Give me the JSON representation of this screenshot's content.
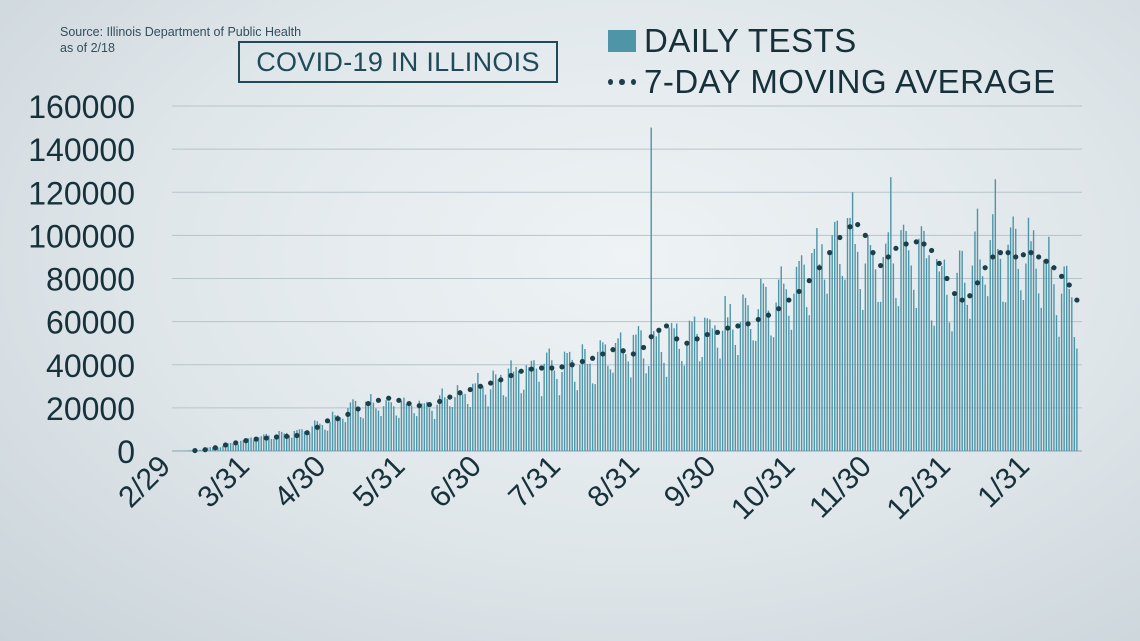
{
  "source_lines": [
    "Source: Illinois Department of Public Health",
    "as of 2/18"
  ],
  "title": "COVID-19 IN ILLINOIS",
  "legend": {
    "bars": "DAILY TESTS",
    "dots": "7-DAY MOVING AVERAGE"
  },
  "colors": {
    "bar": "#4e95a8",
    "dot": "#1c3f4a",
    "axis_text": "#17313b",
    "grid": "#b7c4ca"
  },
  "chart_data": {
    "type": "bar",
    "title": "COVID-19 IN ILLINOIS",
    "xlabel": "",
    "ylabel": "",
    "ylim": [
      0,
      160000
    ],
    "grid": true,
    "legend_position": "top-right",
    "y_ticks": [
      0,
      20000,
      40000,
      60000,
      80000,
      100000,
      120000,
      140000,
      160000
    ],
    "x_ticks": [
      "2/29",
      "3/31",
      "4/30",
      "5/31",
      "6/30",
      "7/31",
      "8/31",
      "9/30",
      "10/31",
      "11/30",
      "12/31",
      "1/31"
    ],
    "series": [
      {
        "name": "DAILY TESTS",
        "kind": "bar",
        "anchors": [
          [
            "2020-03-01",
            0
          ],
          [
            "2020-03-10",
            500
          ],
          [
            "2020-03-20",
            2500
          ],
          [
            "2020-03-31",
            6000
          ],
          [
            "2020-04-10",
            7500
          ],
          [
            "2020-04-20",
            10000
          ],
          [
            "2020-04-30",
            14000
          ],
          [
            "2020-05-10",
            22000
          ],
          [
            "2020-05-20",
            23000
          ],
          [
            "2020-05-31",
            21000
          ],
          [
            "2020-06-10",
            22000
          ],
          [
            "2020-06-20",
            27000
          ],
          [
            "2020-06-30",
            30000
          ],
          [
            "2020-07-10",
            36000
          ],
          [
            "2020-07-20",
            38000
          ],
          [
            "2020-07-31",
            40000
          ],
          [
            "2020-08-10",
            42000
          ],
          [
            "2020-08-20",
            47000
          ],
          [
            "2020-08-31",
            50000
          ],
          [
            "2020-09-10",
            52000
          ],
          [
            "2020-09-20",
            55000
          ],
          [
            "2020-09-30",
            58000
          ],
          [
            "2020-10-10",
            63000
          ],
          [
            "2020-10-20",
            70000
          ],
          [
            "2020-10-31",
            80000
          ],
          [
            "2020-11-10",
            92000
          ],
          [
            "2020-11-18",
            102000
          ],
          [
            "2020-11-30",
            88000
          ],
          [
            "2020-12-10",
            96000
          ],
          [
            "2020-12-20",
            90000
          ],
          [
            "2020-12-31",
            74000
          ],
          [
            "2021-01-10",
            92000
          ],
          [
            "2021-01-20",
            92000
          ],
          [
            "2021-01-31",
            90000
          ],
          [
            "2021-02-10",
            80000
          ],
          [
            "2021-02-18",
            68000
          ]
        ],
        "spikes": [
          [
            "2020-09-04",
            150000
          ],
          [
            "2020-11-22",
            120000
          ],
          [
            "2020-12-07",
            127000
          ],
          [
            "2021-01-17",
            126000
          ]
        ]
      },
      {
        "name": "7-DAY MOVING AVERAGE",
        "kind": "dots",
        "points": [
          [
            "2020-03-09",
            200
          ],
          [
            "2020-03-13",
            600
          ],
          [
            "2020-03-17",
            1500
          ],
          [
            "2020-03-21",
            2800
          ],
          [
            "2020-03-25",
            3800
          ],
          [
            "2020-03-29",
            4800
          ],
          [
            "2020-04-02",
            5500
          ],
          [
            "2020-04-06",
            6000
          ],
          [
            "2020-04-10",
            6500
          ],
          [
            "2020-04-14",
            6800
          ],
          [
            "2020-04-18",
            7200
          ],
          [
            "2020-04-22",
            8500
          ],
          [
            "2020-04-26",
            11000
          ],
          [
            "2020-04-30",
            14000
          ],
          [
            "2020-05-04",
            15000
          ],
          [
            "2020-05-08",
            17000
          ],
          [
            "2020-05-12",
            19500
          ],
          [
            "2020-05-16",
            22000
          ],
          [
            "2020-05-20",
            23500
          ],
          [
            "2020-05-24",
            24500
          ],
          [
            "2020-05-28",
            23500
          ],
          [
            "2020-06-01",
            22000
          ],
          [
            "2020-06-05",
            21000
          ],
          [
            "2020-06-09",
            21500
          ],
          [
            "2020-06-13",
            23000
          ],
          [
            "2020-06-17",
            25000
          ],
          [
            "2020-06-21",
            27000
          ],
          [
            "2020-06-25",
            28500
          ],
          [
            "2020-06-29",
            30000
          ],
          [
            "2020-07-03",
            31500
          ],
          [
            "2020-07-07",
            33000
          ],
          [
            "2020-07-11",
            35000
          ],
          [
            "2020-07-15",
            37000
          ],
          [
            "2020-07-19",
            38000
          ],
          [
            "2020-07-23",
            38500
          ],
          [
            "2020-07-27",
            38500
          ],
          [
            "2020-07-31",
            39000
          ],
          [
            "2020-08-04",
            40000
          ],
          [
            "2020-08-08",
            41500
          ],
          [
            "2020-08-12",
            43000
          ],
          [
            "2020-08-16",
            45000
          ],
          [
            "2020-08-20",
            47000
          ],
          [
            "2020-08-24",
            46500
          ],
          [
            "2020-08-28",
            45000
          ],
          [
            "2020-09-01",
            48000
          ],
          [
            "2020-09-04",
            53000
          ],
          [
            "2020-09-07",
            56000
          ],
          [
            "2020-09-10",
            58000
          ],
          [
            "2020-09-14",
            52000
          ],
          [
            "2020-09-18",
            50000
          ],
          [
            "2020-09-22",
            52000
          ],
          [
            "2020-09-26",
            54000
          ],
          [
            "2020-09-30",
            55000
          ],
          [
            "2020-10-04",
            57000
          ],
          [
            "2020-10-08",
            58000
          ],
          [
            "2020-10-12",
            59000
          ],
          [
            "2020-10-16",
            61000
          ],
          [
            "2020-10-20",
            63000
          ],
          [
            "2020-10-24",
            66000
          ],
          [
            "2020-10-28",
            70000
          ],
          [
            "2020-11-01",
            74000
          ],
          [
            "2020-11-05",
            79000
          ],
          [
            "2020-11-09",
            85000
          ],
          [
            "2020-11-13",
            92000
          ],
          [
            "2020-11-17",
            99000
          ],
          [
            "2020-11-21",
            104000
          ],
          [
            "2020-11-24",
            105000
          ],
          [
            "2020-11-27",
            100000
          ],
          [
            "2020-11-30",
            92000
          ],
          [
            "2020-12-03",
            86000
          ],
          [
            "2020-12-06",
            90000
          ],
          [
            "2020-12-09",
            94000
          ],
          [
            "2020-12-13",
            96000
          ],
          [
            "2020-12-17",
            97000
          ],
          [
            "2020-12-20",
            96000
          ],
          [
            "2020-12-23",
            93000
          ],
          [
            "2020-12-26",
            87000
          ],
          [
            "2020-12-29",
            80000
          ],
          [
            "2021-01-01",
            73000
          ],
          [
            "2021-01-04",
            70000
          ],
          [
            "2021-01-07",
            72000
          ],
          [
            "2021-01-10",
            78000
          ],
          [
            "2021-01-13",
            85000
          ],
          [
            "2021-01-16",
            90000
          ],
          [
            "2021-01-19",
            92000
          ],
          [
            "2021-01-22",
            92000
          ],
          [
            "2021-01-25",
            90000
          ],
          [
            "2021-01-28",
            91000
          ],
          [
            "2021-01-31",
            92000
          ],
          [
            "2021-02-03",
            90000
          ],
          [
            "2021-02-06",
            88000
          ],
          [
            "2021-02-09",
            85000
          ],
          [
            "2021-02-12",
            81000
          ],
          [
            "2021-02-15",
            77000
          ],
          [
            "2021-02-18",
            70000
          ]
        ]
      }
    ]
  }
}
